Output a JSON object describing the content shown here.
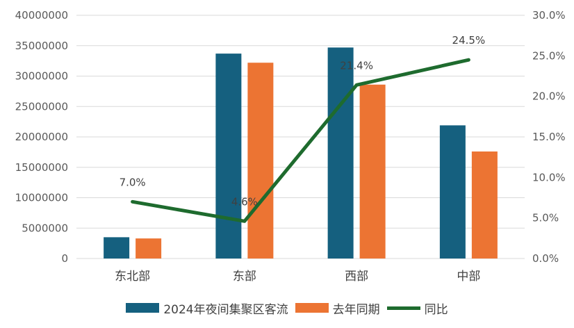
{
  "chart_data": {
    "type": "bar",
    "categories": [
      "东北部",
      "东部",
      "西部",
      "中部"
    ],
    "series": [
      {
        "name": "2024年夜间集聚区客流",
        "type": "bar",
        "axis": "left",
        "values": [
          3500000,
          33700000,
          34700000,
          21900000
        ]
      },
      {
        "name": "去年同期",
        "type": "bar",
        "axis": "left",
        "values": [
          3300000,
          32200000,
          28600000,
          17600000
        ]
      },
      {
        "name": "同比",
        "type": "line",
        "axis": "right",
        "values": [
          7.0,
          4.6,
          21.4,
          24.5
        ],
        "labels": [
          "7.0%",
          "4.6%",
          "21.4%",
          "24.5%"
        ]
      }
    ],
    "y_left": {
      "min": 0,
      "max": 40000000,
      "step": 5000000,
      "ticks": [
        "0",
        "5000000",
        "10000000",
        "15000000",
        "20000000",
        "25000000",
        "30000000",
        "35000000",
        "40000000"
      ]
    },
    "y_right": {
      "min": 0,
      "max": 30,
      "step": 5,
      "ticks": [
        "0.0%",
        "5.0%",
        "10.0%",
        "15.0%",
        "20.0%",
        "25.0%",
        "30.0%"
      ]
    },
    "grid": true,
    "legend_position": "bottom",
    "colors": {
      "series1": "#15607f",
      "series2": "#ec7433",
      "line": "#1e6b2e"
    }
  }
}
